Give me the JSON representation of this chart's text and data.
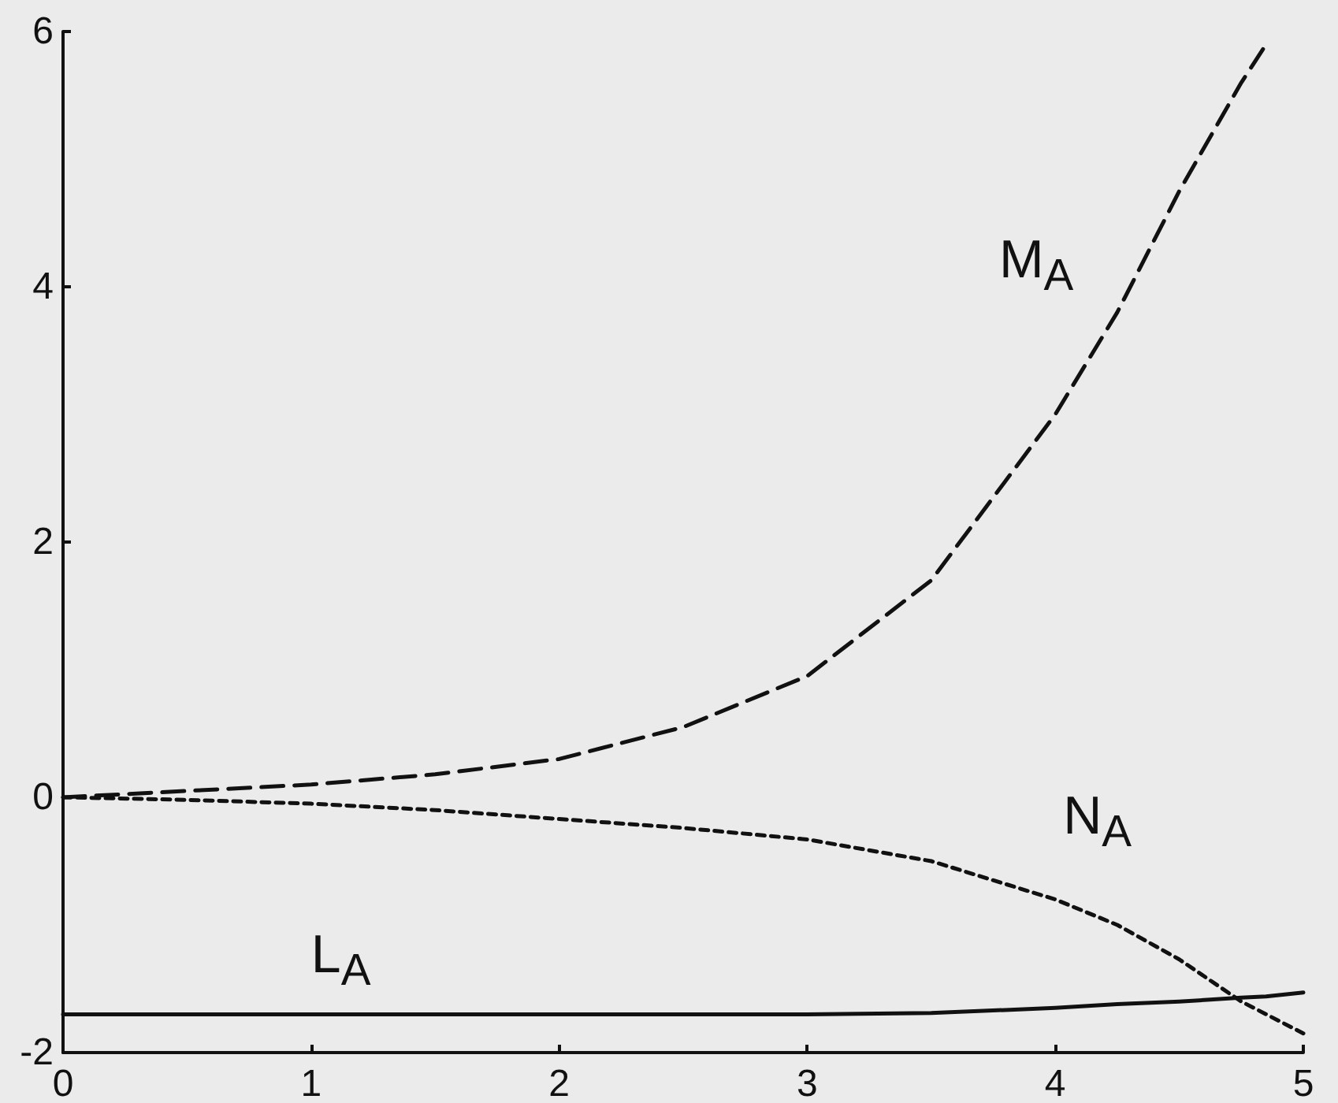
{
  "chart_data": {
    "type": "line",
    "xlim": [
      0,
      5
    ],
    "xticks": [
      0,
      1,
      2,
      3,
      4,
      5
    ],
    "ylim": [
      -2,
      6
    ],
    "yticks": [
      -2,
      0,
      2,
      4,
      6
    ],
    "grid": false,
    "marker": "none",
    "x": [
      0,
      0.5,
      1,
      1.5,
      2,
      2.5,
      3,
      3.5,
      4,
      4.25,
      4.5,
      4.75,
      4.85,
      5
    ],
    "series": [
      {
        "name": "M$_{A}$",
        "color": "#111111",
        "line_style": "dashed",
        "values": [
          0,
          0.05,
          0.1,
          0.18,
          0.3,
          0.55,
          0.95,
          1.7,
          3.0,
          3.8,
          4.75,
          5.6,
          5.9,
          null
        ]
      },
      {
        "name": "N$_{A}$",
        "color": "#111111",
        "line_style": "dotted",
        "values": [
          0,
          -0.02,
          -0.05,
          -0.1,
          -0.17,
          -0.24,
          -0.33,
          -0.5,
          -0.8,
          -1.0,
          -1.27,
          -1.6,
          -1.7,
          -1.85
        ]
      },
      {
        "name": "L$_{A}$",
        "color": "#111111",
        "line_style": "solid",
        "values": [
          -1.7,
          -1.7,
          -1.7,
          -1.7,
          -1.7,
          -1.7,
          -1.7,
          -1.69,
          -1.65,
          -1.62,
          -1.6,
          -1.57,
          -1.56,
          -1.53
        ]
      }
    ]
  }
}
